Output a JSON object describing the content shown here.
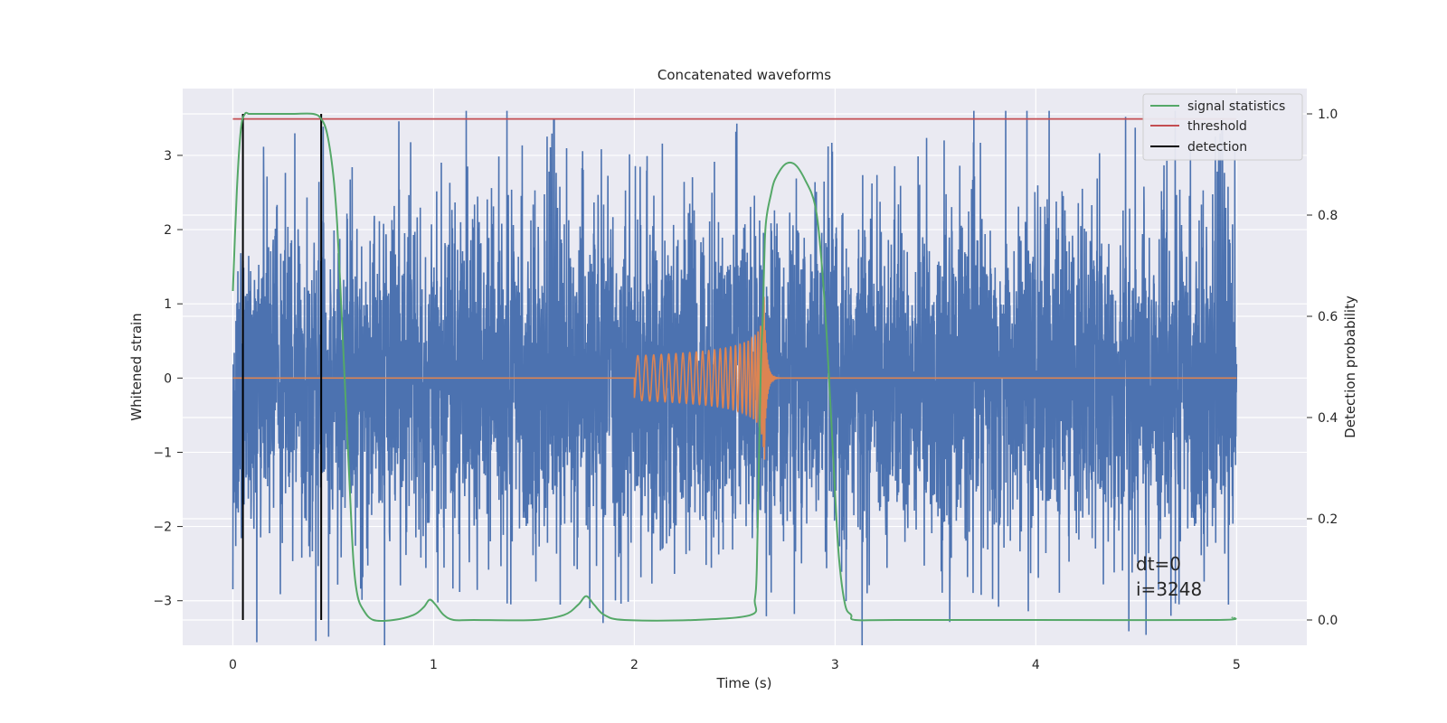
{
  "chart_data": {
    "type": "line",
    "title": "Concatenated waveforms",
    "xlabel": "Time (s)",
    "ylabel_left": "Whitened strain",
    "ylabel_right": "Detection probability",
    "xlim": [
      -0.25,
      5.35
    ],
    "ylim_left": [
      -3.6,
      3.9
    ],
    "ylim_right": [
      -0.05,
      1.05
    ],
    "x_ticks": [
      0,
      1,
      2,
      3,
      4,
      5
    ],
    "x_tick_labels": [
      "0",
      "1",
      "2",
      "3",
      "4",
      "5"
    ],
    "y_left_ticks": [
      -3,
      -2,
      -1,
      0,
      1,
      2,
      3
    ],
    "y_left_tick_labels": [
      "−3",
      "−2",
      "−1",
      "0",
      "1",
      "2",
      "3"
    ],
    "y_right_ticks": [
      0.0,
      0.2,
      0.4,
      0.6,
      0.8,
      1.0
    ],
    "y_right_tick_labels": [
      "0.0",
      "0.2",
      "0.4",
      "0.6",
      "0.8",
      "1.0"
    ],
    "grid": true,
    "legend": {
      "placement": "top-right",
      "entries": [
        "signal statistics",
        "threshold",
        "detection"
      ]
    },
    "series": [
      {
        "name": "Whitened strain (noise)",
        "axis": "left",
        "color": "#4c72b0",
        "kind": "noise",
        "x_range": [
          0,
          5
        ],
        "typical_amplitude": 1.4,
        "peak_amplitude": 3.6
      },
      {
        "name": "Injected chirp",
        "axis": "left",
        "color": "#dd8452",
        "kind": "chirp",
        "start": 2.0,
        "merger": 2.65,
        "start_amplitude": 0.3,
        "peak_amplitude": 1.1,
        "ringdown_end": 2.75
      },
      {
        "name": "signal statistics",
        "axis": "right",
        "color": "#55a868",
        "x": [
          0.0,
          0.02,
          0.04,
          0.06,
          0.08,
          0.1,
          0.2,
          0.3,
          0.4,
          0.44,
          0.47,
          0.5,
          0.52,
          0.54,
          0.56,
          0.58,
          0.6,
          0.62,
          0.65,
          0.7,
          0.8,
          0.9,
          0.95,
          0.98,
          1.01,
          1.05,
          1.1,
          1.2,
          1.5,
          1.65,
          1.72,
          1.76,
          1.8,
          1.85,
          1.95,
          2.3,
          2.58,
          2.6,
          2.61,
          2.62,
          2.63,
          2.64,
          2.65,
          2.66,
          2.68,
          2.7,
          2.75,
          2.8,
          2.85,
          2.9,
          2.93,
          2.96,
          3.0,
          3.02,
          3.05,
          3.08,
          3.1,
          3.3,
          4.0,
          4.9,
          4.98
        ],
        "values": [
          0.65,
          0.85,
          0.97,
          1.0,
          1.0,
          1.0,
          1.0,
          1.0,
          1.0,
          0.99,
          0.96,
          0.88,
          0.78,
          0.62,
          0.45,
          0.28,
          0.12,
          0.05,
          0.02,
          0.0,
          0.0,
          0.01,
          0.025,
          0.04,
          0.03,
          0.01,
          0.0,
          0.0,
          0.0,
          0.01,
          0.03,
          0.047,
          0.03,
          0.01,
          0.0,
          0.0,
          0.01,
          0.04,
          0.1,
          0.3,
          0.5,
          0.6,
          0.75,
          0.8,
          0.84,
          0.87,
          0.9,
          0.9,
          0.87,
          0.82,
          0.72,
          0.55,
          0.25,
          0.12,
          0.03,
          0.01,
          0.0,
          0.0,
          0.0,
          0.0,
          0.005
        ]
      },
      {
        "name": "threshold",
        "axis": "right",
        "color": "#c44e52",
        "x": [
          0.0,
          5.0
        ],
        "values": [
          0.99,
          0.99
        ]
      },
      {
        "name": "detection",
        "axis": "right",
        "color": "#000000",
        "kind": "vertical_lines",
        "x": [
          0.05,
          0.44
        ],
        "y_range": [
          0.0,
          1.0
        ]
      }
    ],
    "annotation": {
      "lines": [
        "dt=0",
        "i=3248"
      ],
      "x": 4.5,
      "y_left": -2.85
    }
  }
}
